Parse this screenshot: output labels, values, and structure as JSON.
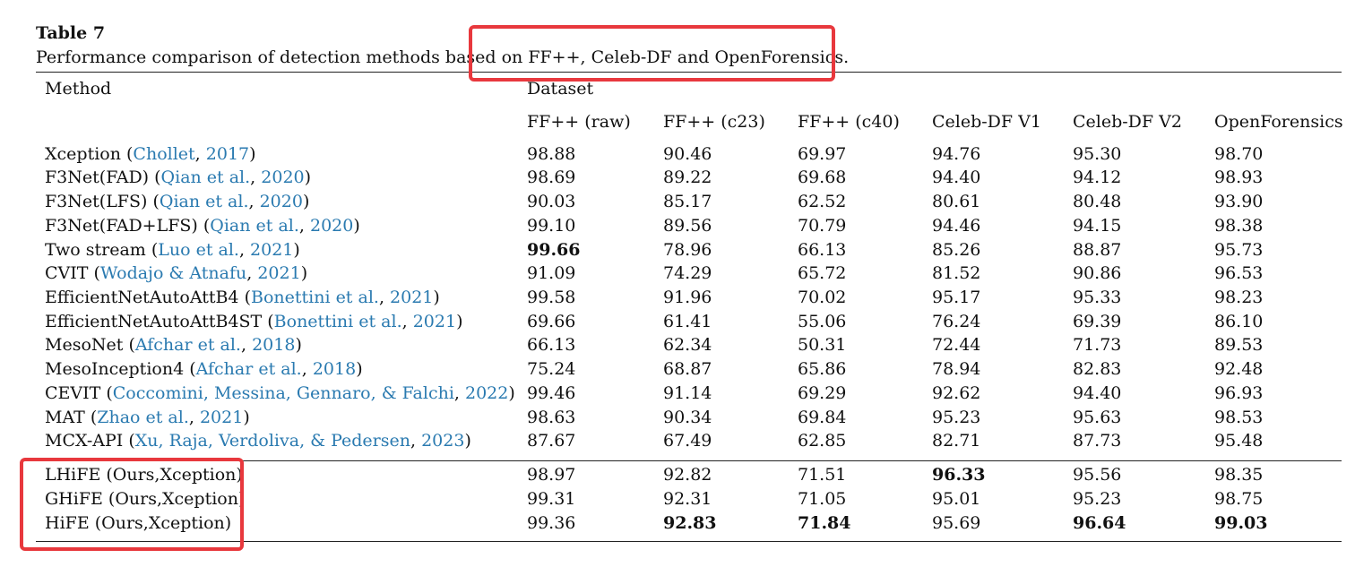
{
  "caption": {
    "title": "Table 7",
    "text": "Performance comparison of detection methods based on FF++, Celeb-DF and OpenForensics."
  },
  "header": {
    "method": "Method",
    "dataset": "Dataset",
    "columns": [
      "FF++ (raw)",
      "FF++ (c23)",
      "FF++ (c40)",
      "Celeb-DF V1",
      "Celeb-DF V2",
      "OpenForensics"
    ]
  },
  "rows": [
    {
      "name": "Xception",
      "cite": "Chollet",
      "year": "2017",
      "values": [
        "98.88",
        "90.46",
        "69.97",
        "94.76",
        "95.30",
        "98.70"
      ],
      "bold": []
    },
    {
      "name": "F3Net(FAD)",
      "cite": "Qian et al.",
      "year": "2020",
      "values": [
        "98.69",
        "89.22",
        "69.68",
        "94.40",
        "94.12",
        "98.93"
      ],
      "bold": []
    },
    {
      "name": "F3Net(LFS)",
      "cite": "Qian et al.",
      "year": "2020",
      "values": [
        "90.03",
        "85.17",
        "62.52",
        "80.61",
        "80.48",
        "93.90"
      ],
      "bold": []
    },
    {
      "name": "F3Net(FAD+LFS)",
      "cite": "Qian et al.",
      "year": "2020",
      "values": [
        "99.10",
        "89.56",
        "70.79",
        "94.46",
        "94.15",
        "98.38"
      ],
      "bold": []
    },
    {
      "name": "Two stream",
      "cite": "Luo et al.",
      "year": "2021",
      "values": [
        "99.66",
        "78.96",
        "66.13",
        "85.26",
        "88.87",
        "95.73"
      ],
      "bold": [
        0
      ]
    },
    {
      "name": "CVIT",
      "cite": "Wodajo & Atnafu",
      "year": "2021",
      "values": [
        "91.09",
        "74.29",
        "65.72",
        "81.52",
        "90.86",
        "96.53"
      ],
      "bold": []
    },
    {
      "name": "EfficientNetAutoAttB4",
      "cite": "Bonettini et al.",
      "year": "2021",
      "values": [
        "99.58",
        "91.96",
        "70.02",
        "95.17",
        "95.33",
        "98.23"
      ],
      "bold": []
    },
    {
      "name": "EfficientNetAutoAttB4ST",
      "cite": "Bonettini et al.",
      "year": "2021",
      "values": [
        "69.66",
        "61.41",
        "55.06",
        "76.24",
        "69.39",
        "86.10"
      ],
      "bold": []
    },
    {
      "name": "MesoNet",
      "cite": "Afchar et al.",
      "year": "2018",
      "values": [
        "66.13",
        "62.34",
        "50.31",
        "72.44",
        "71.73",
        "89.53"
      ],
      "bold": []
    },
    {
      "name": "MesoInception4",
      "cite": "Afchar et al.",
      "year": "2018",
      "values": [
        "75.24",
        "68.87",
        "65.86",
        "78.94",
        "82.83",
        "92.48"
      ],
      "bold": []
    },
    {
      "name": "CEVIT",
      "cite": "Coccomini, Messina, Gennaro, & Falchi",
      "year": "2022",
      "values": [
        "99.46",
        "91.14",
        "69.29",
        "92.62",
        "94.40",
        "96.93"
      ],
      "bold": []
    },
    {
      "name": "MAT",
      "cite": "Zhao et al.",
      "year": "2021",
      "values": [
        "98.63",
        "90.34",
        "69.84",
        "95.23",
        "95.63",
        "98.53"
      ],
      "bold": []
    },
    {
      "name": "MCX-API",
      "cite": "Xu, Raja, Verdoliva, & Pedersen",
      "year": "2023",
      "values": [
        "87.67",
        "67.49",
        "62.85",
        "82.71",
        "87.73",
        "95.48"
      ],
      "bold": []
    }
  ],
  "ours": [
    {
      "name": "LHiFE (Ours,Xception)",
      "values": [
        "98.97",
        "92.82",
        "71.51",
        "96.33",
        "95.56",
        "98.35"
      ],
      "bold": [
        3
      ]
    },
    {
      "name": "GHiFE (Ours,Xception)",
      "values": [
        "99.31",
        "92.31",
        "71.05",
        "95.01",
        "95.23",
        "98.75"
      ],
      "bold": []
    },
    {
      "name": "HiFE (Ours,Xception)",
      "values": [
        "99.36",
        "92.83",
        "71.84",
        "95.69",
        "96.64",
        "99.03"
      ],
      "bold": [
        1,
        2,
        4,
        5
      ]
    }
  ]
}
